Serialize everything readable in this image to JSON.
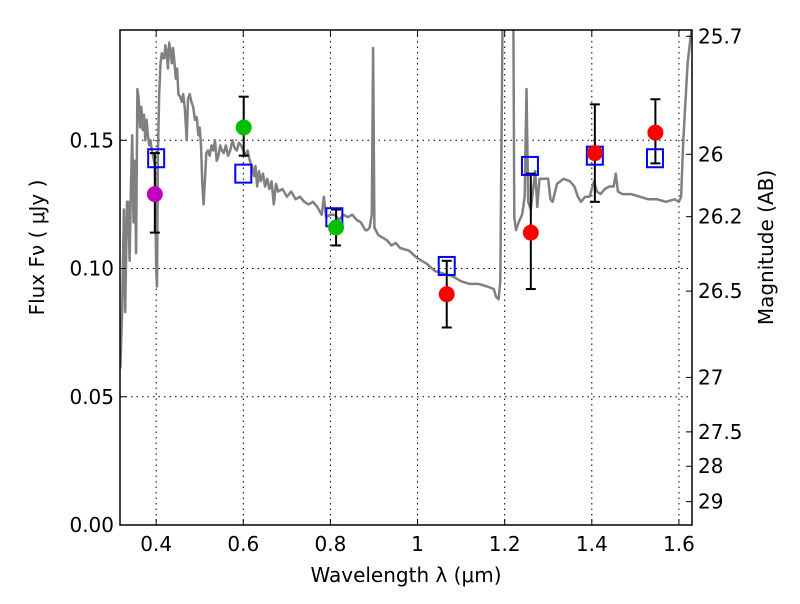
{
  "chart_data": {
    "type": "scatter",
    "title": "",
    "xlabel": "Wavelength  λ (μm)",
    "ylabel": "Flux  Fν  ( μJy )",
    "y2label": "Magnitude (AB)",
    "xlim": [
      0.317,
      1.63
    ],
    "ylim": [
      0.0,
      0.193
    ],
    "grid": true,
    "xticks": [
      0.4,
      0.6,
      0.8,
      1.0,
      1.2,
      1.4,
      1.6
    ],
    "xtick_labels": [
      "0.4",
      "0.6",
      "0.8",
      "1",
      "1.2",
      "1.4",
      "1.6"
    ],
    "yticks": [
      0.0,
      0.05,
      0.1,
      0.15
    ],
    "ytick_labels": [
      "0.00",
      "0.05",
      "0.10",
      "0.15"
    ],
    "y2ticks_mag": [
      25.7,
      26,
      26.2,
      26.5,
      27,
      27.5,
      28,
      29
    ],
    "y2tick_labels": [
      "25.7",
      "26",
      "26.2",
      "26.5",
      "27",
      "27.5",
      "28",
      "29"
    ],
    "colors": {
      "spectrum": "#808080",
      "model_box": "#0000ff",
      "errorbar": "#000000",
      "magenta": "#bf00bf",
      "green": "#00bf00",
      "red": "#ff0000"
    },
    "series": [
      {
        "name": "model-spectrum",
        "kind": "line",
        "points": [
          [
            0.318,
            0.061
          ],
          [
            0.322,
            0.085
          ],
          [
            0.326,
            0.123
          ],
          [
            0.329,
            0.083
          ],
          [
            0.333,
            0.126
          ],
          [
            0.336,
            0.126
          ],
          [
            0.339,
            0.103
          ],
          [
            0.342,
            0.131
          ],
          [
            0.345,
            0.152
          ],
          [
            0.348,
            0.118
          ],
          [
            0.351,
            0.142
          ],
          [
            0.354,
            0.106
          ],
          [
            0.357,
            0.17
          ],
          [
            0.36,
            0.166
          ],
          [
            0.363,
            0.155
          ],
          [
            0.366,
            0.163
          ],
          [
            0.369,
            0.154
          ],
          [
            0.372,
            0.16
          ],
          [
            0.375,
            0.15
          ],
          [
            0.378,
            0.158
          ],
          [
            0.381,
            0.152
          ],
          [
            0.384,
            0.148
          ],
          [
            0.387,
            0.15
          ],
          [
            0.39,
            0.146
          ],
          [
            0.394,
            0.143
          ],
          [
            0.397,
            0.14
          ],
          [
            0.4,
            0.1
          ],
          [
            0.402,
            0.093
          ],
          [
            0.404,
            0.145
          ],
          [
            0.407,
            0.168
          ],
          [
            0.41,
            0.18
          ],
          [
            0.413,
            0.184
          ],
          [
            0.416,
            0.182
          ],
          [
            0.419,
            0.182
          ],
          [
            0.421,
            0.187
          ],
          [
            0.424,
            0.185
          ],
          [
            0.427,
            0.178
          ],
          [
            0.43,
            0.188
          ],
          [
            0.433,
            0.185
          ],
          [
            0.436,
            0.18
          ],
          [
            0.439,
            0.186
          ],
          [
            0.442,
            0.18
          ],
          [
            0.445,
            0.174
          ],
          [
            0.448,
            0.178
          ],
          [
            0.451,
            0.168
          ],
          [
            0.455,
            0.167
          ],
          [
            0.459,
            0.165
          ],
          [
            0.462,
            0.168
          ],
          [
            0.466,
            0.162
          ],
          [
            0.47,
            0.15
          ],
          [
            0.473,
            0.166
          ],
          [
            0.477,
            0.168
          ],
          [
            0.481,
            0.165
          ],
          [
            0.485,
            0.163
          ],
          [
            0.489,
            0.158
          ],
          [
            0.493,
            0.159
          ],
          [
            0.497,
            0.152
          ],
          [
            0.5,
            0.155
          ],
          [
            0.503,
            0.148
          ],
          [
            0.506,
            0.133
          ],
          [
            0.509,
            0.125
          ],
          [
            0.512,
            0.135
          ],
          [
            0.515,
            0.145
          ],
          [
            0.519,
            0.146
          ],
          [
            0.523,
            0.144
          ],
          [
            0.527,
            0.148
          ],
          [
            0.531,
            0.146
          ],
          [
            0.535,
            0.15
          ],
          [
            0.539,
            0.142
          ],
          [
            0.543,
            0.144
          ],
          [
            0.547,
            0.148
          ],
          [
            0.551,
            0.146
          ],
          [
            0.555,
            0.145
          ],
          [
            0.56,
            0.148
          ],
          [
            0.565,
            0.144
          ],
          [
            0.57,
            0.146
          ],
          [
            0.575,
            0.15
          ],
          [
            0.58,
            0.147
          ],
          [
            0.585,
            0.146
          ],
          [
            0.59,
            0.149
          ],
          [
            0.595,
            0.148
          ],
          [
            0.6,
            0.146
          ],
          [
            0.605,
            0.144
          ],
          [
            0.61,
            0.146
          ],
          [
            0.615,
            0.142
          ],
          [
            0.62,
            0.14
          ],
          [
            0.625,
            0.136
          ],
          [
            0.628,
            0.14
          ],
          [
            0.632,
            0.132
          ],
          [
            0.636,
            0.138
          ],
          [
            0.64,
            0.134
          ],
          [
            0.645,
            0.137
          ],
          [
            0.65,
            0.132
          ],
          [
            0.655,
            0.135
          ],
          [
            0.66,
            0.131
          ],
          [
            0.665,
            0.134
          ],
          [
            0.67,
            0.125
          ],
          [
            0.675,
            0.133
          ],
          [
            0.68,
            0.13
          ],
          [
            0.69,
            0.131
          ],
          [
            0.7,
            0.128
          ],
          [
            0.71,
            0.13
          ],
          [
            0.72,
            0.127
          ],
          [
            0.73,
            0.128
          ],
          [
            0.74,
            0.126
          ],
          [
            0.75,
            0.125
          ],
          [
            0.76,
            0.126
          ],
          [
            0.77,
            0.124
          ],
          [
            0.78,
            0.121
          ],
          [
            0.785,
            0.128
          ],
          [
            0.79,
            0.12
          ],
          [
            0.8,
            0.121
          ],
          [
            0.81,
            0.121
          ],
          [
            0.82,
            0.119
          ],
          [
            0.83,
            0.121
          ],
          [
            0.84,
            0.12
          ],
          [
            0.85,
            0.121
          ],
          [
            0.86,
            0.119
          ],
          [
            0.87,
            0.118
          ],
          [
            0.88,
            0.115
          ],
          [
            0.885,
            0.115
          ],
          [
            0.89,
            0.116
          ],
          [
            0.895,
            0.121
          ],
          [
            0.898,
            0.186
          ],
          [
            0.901,
            0.116
          ],
          [
            0.91,
            0.113
          ],
          [
            0.92,
            0.112
          ],
          [
            0.93,
            0.111
          ],
          [
            0.94,
            0.109
          ],
          [
            0.95,
            0.11
          ],
          [
            0.96,
            0.108
          ],
          [
            0.98,
            0.107
          ],
          [
            1.0,
            0.104
          ],
          [
            1.02,
            0.102
          ],
          [
            1.04,
            0.099
          ],
          [
            1.06,
            0.098
          ],
          [
            1.08,
            0.097
          ],
          [
            1.1,
            0.095
          ],
          [
            1.12,
            0.094
          ],
          [
            1.14,
            0.094
          ],
          [
            1.16,
            0.093
          ],
          [
            1.175,
            0.092
          ],
          [
            1.18,
            0.089
          ],
          [
            1.186,
            0.088
          ],
          [
            1.19,
            0.095
          ],
          [
            1.195,
            0.195
          ],
          [
            1.22,
            0.195
          ],
          [
            1.222,
            0.12
          ],
          [
            1.226,
            0.115
          ],
          [
            1.232,
            0.118
          ],
          [
            1.24,
            0.121
          ],
          [
            1.246,
            0.128
          ],
          [
            1.25,
            0.17
          ],
          [
            1.254,
            0.126
          ],
          [
            1.26,
            0.123
          ],
          [
            1.27,
            0.138
          ],
          [
            1.275,
            0.124
          ],
          [
            1.28,
            0.135
          ],
          [
            1.29,
            0.135
          ],
          [
            1.3,
            0.135
          ],
          [
            1.305,
            0.127
          ],
          [
            1.31,
            0.126
          ],
          [
            1.32,
            0.133
          ],
          [
            1.335,
            0.135
          ],
          [
            1.35,
            0.134
          ],
          [
            1.36,
            0.132
          ],
          [
            1.368,
            0.128
          ],
          [
            1.375,
            0.126
          ],
          [
            1.385,
            0.128
          ],
          [
            1.395,
            0.128
          ],
          [
            1.405,
            0.134
          ],
          [
            1.412,
            0.13
          ],
          [
            1.42,
            0.129
          ],
          [
            1.43,
            0.131
          ],
          [
            1.44,
            0.132
          ],
          [
            1.45,
            0.132
          ],
          [
            1.455,
            0.137
          ],
          [
            1.46,
            0.13
          ],
          [
            1.47,
            0.129
          ],
          [
            1.49,
            0.129
          ],
          [
            1.51,
            0.128
          ],
          [
            1.53,
            0.127
          ],
          [
            1.55,
            0.127
          ],
          [
            1.57,
            0.126
          ],
          [
            1.59,
            0.127
          ],
          [
            1.6,
            0.126
          ],
          [
            1.605,
            0.128
          ],
          [
            1.61,
            0.15
          ],
          [
            1.62,
            0.18
          ],
          [
            1.63,
            0.195
          ]
        ]
      },
      {
        "name": "model-photometry",
        "kind": "square",
        "color_key": "model_box",
        "x": [
          0.4,
          0.6,
          0.809,
          1.067,
          1.258,
          1.407,
          1.545
        ],
        "y": [
          0.143,
          0.137,
          0.12,
          0.101,
          0.14,
          0.144,
          0.143
        ]
      },
      {
        "name": "observed-magenta",
        "kind": "point",
        "color_key": "magenta",
        "x": [
          0.397
        ],
        "y": [
          0.129
        ],
        "err_low": [
          0.114
        ],
        "err_high": [
          0.145
        ]
      },
      {
        "name": "observed-green",
        "kind": "point",
        "color_key": "green",
        "x": [
          0.601,
          0.813
        ],
        "y": [
          0.155,
          0.116
        ],
        "err_low": [
          0.144,
          0.109
        ],
        "err_high": [
          0.167,
          0.123
        ]
      },
      {
        "name": "observed-red",
        "kind": "point",
        "color_key": "red",
        "x": [
          1.067,
          1.26,
          1.407,
          1.546
        ],
        "y": [
          0.09,
          0.114,
          0.145,
          0.153
        ],
        "err_low": [
          0.077,
          0.092,
          0.126,
          0.141
        ],
        "err_high": [
          0.103,
          0.137,
          0.164,
          0.166
        ]
      }
    ]
  }
}
